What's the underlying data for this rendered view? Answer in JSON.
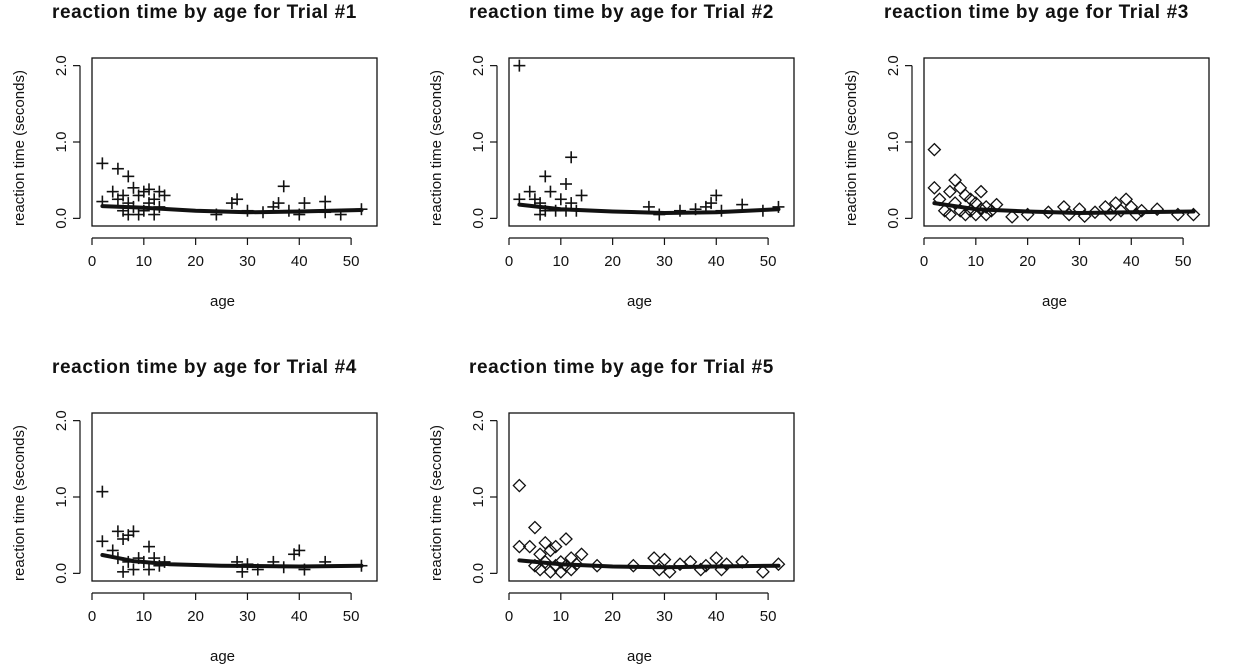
{
  "chart_data": [
    {
      "type": "scatter",
      "title": "reaction time by age for Trial #1",
      "xlabel": "age",
      "ylabel": "reaction time (seconds)",
      "xlim": [
        0,
        55
      ],
      "ylim": [
        -0.1,
        2.1
      ],
      "x_ticks": [
        "0",
        "10",
        "20",
        "30",
        "40",
        "50"
      ],
      "y_ticks": [
        "0.0",
        "1.0",
        "2.0"
      ],
      "marker": "plus",
      "points": [
        [
          2,
          0.72
        ],
        [
          2,
          0.22
        ],
        [
          4,
          0.35
        ],
        [
          5,
          0.65
        ],
        [
          5,
          0.25
        ],
        [
          6,
          0.3
        ],
        [
          6,
          0.1
        ],
        [
          7,
          0.55
        ],
        [
          7,
          0.2
        ],
        [
          7,
          0.05
        ],
        [
          8,
          0.4
        ],
        [
          8,
          0.15
        ],
        [
          9,
          0.3
        ],
        [
          9,
          0.05
        ],
        [
          10,
          0.35
        ],
        [
          10,
          0.1
        ],
        [
          11,
          0.38
        ],
        [
          11,
          0.2
        ],
        [
          12,
          0.25
        ],
        [
          12,
          0.05
        ],
        [
          13,
          0.35
        ],
        [
          13,
          0.15
        ],
        [
          14,
          0.3
        ],
        [
          24,
          0.05
        ],
        [
          27,
          0.2
        ],
        [
          28,
          0.25
        ],
        [
          30,
          0.1
        ],
        [
          33,
          0.08
        ],
        [
          35,
          0.15
        ],
        [
          36,
          0.2
        ],
        [
          37,
          0.42
        ],
        [
          38,
          0.1
        ],
        [
          40,
          0.05
        ],
        [
          41,
          0.2
        ],
        [
          45,
          0.22
        ],
        [
          45,
          0.08
        ],
        [
          48,
          0.05
        ],
        [
          52,
          0.12
        ]
      ],
      "trend": [
        [
          2,
          0.16
        ],
        [
          10,
          0.14
        ],
        [
          20,
          0.1
        ],
        [
          30,
          0.08
        ],
        [
          40,
          0.09
        ],
        [
          52,
          0.11
        ]
      ]
    },
    {
      "type": "scatter",
      "title": "reaction time by age for Trial #2",
      "xlabel": "age",
      "ylabel": "reaction time (seconds)",
      "xlim": [
        0,
        55
      ],
      "ylim": [
        -0.1,
        2.1
      ],
      "x_ticks": [
        "0",
        "10",
        "20",
        "30",
        "40",
        "50"
      ],
      "y_ticks": [
        "0.0",
        "1.0",
        "2.0"
      ],
      "marker": "plus",
      "points": [
        [
          2,
          2.0
        ],
        [
          2,
          0.25
        ],
        [
          4,
          0.35
        ],
        [
          5,
          0.25
        ],
        [
          6,
          0.2
        ],
        [
          6,
          0.05
        ],
        [
          7,
          0.55
        ],
        [
          7,
          0.1
        ],
        [
          8,
          0.35
        ],
        [
          9,
          0.1
        ],
        [
          10,
          0.25
        ],
        [
          11,
          0.45
        ],
        [
          11,
          0.1
        ],
        [
          12,
          0.8
        ],
        [
          12,
          0.2
        ],
        [
          13,
          0.1
        ],
        [
          14,
          0.3
        ],
        [
          27,
          0.15
        ],
        [
          29,
          0.05
        ],
        [
          33,
          0.1
        ],
        [
          36,
          0.12
        ],
        [
          38,
          0.15
        ],
        [
          39,
          0.2
        ],
        [
          40,
          0.3
        ],
        [
          41,
          0.1
        ],
        [
          45,
          0.18
        ],
        [
          49,
          0.1
        ],
        [
          52,
          0.15
        ]
      ],
      "trend": [
        [
          2,
          0.18
        ],
        [
          10,
          0.12
        ],
        [
          20,
          0.09
        ],
        [
          30,
          0.07
        ],
        [
          40,
          0.08
        ],
        [
          52,
          0.12
        ]
      ]
    },
    {
      "type": "scatter",
      "title": "reaction time by age for Trial #3",
      "xlabel": "age",
      "ylabel": "reaction time (seconds)",
      "xlim": [
        0,
        55
      ],
      "ylim": [
        -0.1,
        2.1
      ],
      "x_ticks": [
        "0",
        "10",
        "20",
        "30",
        "40",
        "50"
      ],
      "y_ticks": [
        "0.0",
        "1.0",
        "2.0"
      ],
      "marker": "diamond",
      "points": [
        [
          2,
          0.9
        ],
        [
          2,
          0.4
        ],
        [
          3,
          0.25
        ],
        [
          4,
          0.1
        ],
        [
          5,
          0.35
        ],
        [
          5,
          0.05
        ],
        [
          6,
          0.5
        ],
        [
          6,
          0.2
        ],
        [
          7,
          0.4
        ],
        [
          7,
          0.1
        ],
        [
          8,
          0.3
        ],
        [
          8,
          0.05
        ],
        [
          9,
          0.25
        ],
        [
          9,
          0.1
        ],
        [
          10,
          0.2
        ],
        [
          10,
          0.05
        ],
        [
          11,
          0.35
        ],
        [
          11,
          0.12
        ],
        [
          12,
          0.15
        ],
        [
          12,
          0.05
        ],
        [
          13,
          0.1
        ],
        [
          14,
          0.18
        ],
        [
          17,
          0.02
        ],
        [
          20,
          0.05
        ],
        [
          24,
          0.08
        ],
        [
          27,
          0.15
        ],
        [
          28,
          0.05
        ],
        [
          30,
          0.12
        ],
        [
          31,
          0.03
        ],
        [
          33,
          0.08
        ],
        [
          35,
          0.15
        ],
        [
          36,
          0.05
        ],
        [
          37,
          0.2
        ],
        [
          38,
          0.1
        ],
        [
          39,
          0.25
        ],
        [
          40,
          0.15
        ],
        [
          41,
          0.05
        ],
        [
          42,
          0.1
        ],
        [
          45,
          0.12
        ],
        [
          49,
          0.05
        ],
        [
          52,
          0.05
        ]
      ],
      "trend": [
        [
          2,
          0.2
        ],
        [
          10,
          0.12
        ],
        [
          20,
          0.09
        ],
        [
          30,
          0.07
        ],
        [
          40,
          0.08
        ],
        [
          52,
          0.09
        ]
      ]
    },
    {
      "type": "scatter",
      "title": "reaction time by age for Trial #4",
      "xlabel": "age",
      "ylabel": "reaction time (seconds)",
      "xlim": [
        0,
        55
      ],
      "ylim": [
        -0.1,
        2.1
      ],
      "x_ticks": [
        "0",
        "10",
        "20",
        "30",
        "40",
        "50"
      ],
      "y_ticks": [
        "0.0",
        "1.0",
        "2.0"
      ],
      "marker": "plus",
      "points": [
        [
          2,
          1.07
        ],
        [
          2,
          0.42
        ],
        [
          4,
          0.3
        ],
        [
          5,
          0.55
        ],
        [
          5,
          0.2
        ],
        [
          6,
          0.45
        ],
        [
          6,
          0.02
        ],
        [
          7,
          0.5
        ],
        [
          7,
          0.15
        ],
        [
          8,
          0.55
        ],
        [
          8,
          0.05
        ],
        [
          9,
          0.2
        ],
        [
          10,
          0.15
        ],
        [
          11,
          0.35
        ],
        [
          11,
          0.05
        ],
        [
          12,
          0.2
        ],
        [
          13,
          0.1
        ],
        [
          14,
          0.15
        ],
        [
          28,
          0.15
        ],
        [
          29,
          0.02
        ],
        [
          30,
          0.12
        ],
        [
          32,
          0.05
        ],
        [
          35,
          0.15
        ],
        [
          37,
          0.08
        ],
        [
          39,
          0.25
        ],
        [
          40,
          0.3
        ],
        [
          41,
          0.05
        ],
        [
          45,
          0.15
        ],
        [
          52,
          0.1
        ]
      ],
      "trend": [
        [
          2,
          0.24
        ],
        [
          8,
          0.16
        ],
        [
          15,
          0.12
        ],
        [
          25,
          0.1
        ],
        [
          40,
          0.09
        ],
        [
          52,
          0.1
        ]
      ]
    },
    {
      "type": "scatter",
      "title": "reaction time by age for Trial #5",
      "xlabel": "age",
      "ylabel": "reaction time (seconds)",
      "xlim": [
        0,
        55
      ],
      "ylim": [
        -0.1,
        2.1
      ],
      "x_ticks": [
        "0",
        "10",
        "20",
        "30",
        "40",
        "50"
      ],
      "y_ticks": [
        "0.0",
        "1.0",
        "2.0"
      ],
      "marker": "diamond",
      "points": [
        [
          2,
          1.15
        ],
        [
          2,
          0.35
        ],
        [
          4,
          0.35
        ],
        [
          5,
          0.6
        ],
        [
          5,
          0.1
        ],
        [
          6,
          0.25
        ],
        [
          6,
          0.05
        ],
        [
          7,
          0.4
        ],
        [
          7,
          0.15
        ],
        [
          8,
          0.3
        ],
        [
          8,
          0.02
        ],
        [
          9,
          0.35
        ],
        [
          9,
          0.1
        ],
        [
          10,
          0.15
        ],
        [
          10,
          0.02
        ],
        [
          11,
          0.45
        ],
        [
          11,
          0.1
        ],
        [
          12,
          0.2
        ],
        [
          12,
          0.05
        ],
        [
          13,
          0.12
        ],
        [
          14,
          0.25
        ],
        [
          17,
          0.1
        ],
        [
          24,
          0.1
        ],
        [
          28,
          0.2
        ],
        [
          29,
          0.05
        ],
        [
          30,
          0.18
        ],
        [
          31,
          0.02
        ],
        [
          33,
          0.12
        ],
        [
          35,
          0.15
        ],
        [
          37,
          0.05
        ],
        [
          38,
          0.1
        ],
        [
          40,
          0.2
        ],
        [
          41,
          0.05
        ],
        [
          42,
          0.12
        ],
        [
          45,
          0.15
        ],
        [
          49,
          0.02
        ],
        [
          52,
          0.12
        ]
      ],
      "trend": [
        [
          2,
          0.17
        ],
        [
          10,
          0.12
        ],
        [
          20,
          0.09
        ],
        [
          30,
          0.08
        ],
        [
          40,
          0.09
        ],
        [
          52,
          0.1
        ]
      ]
    }
  ]
}
